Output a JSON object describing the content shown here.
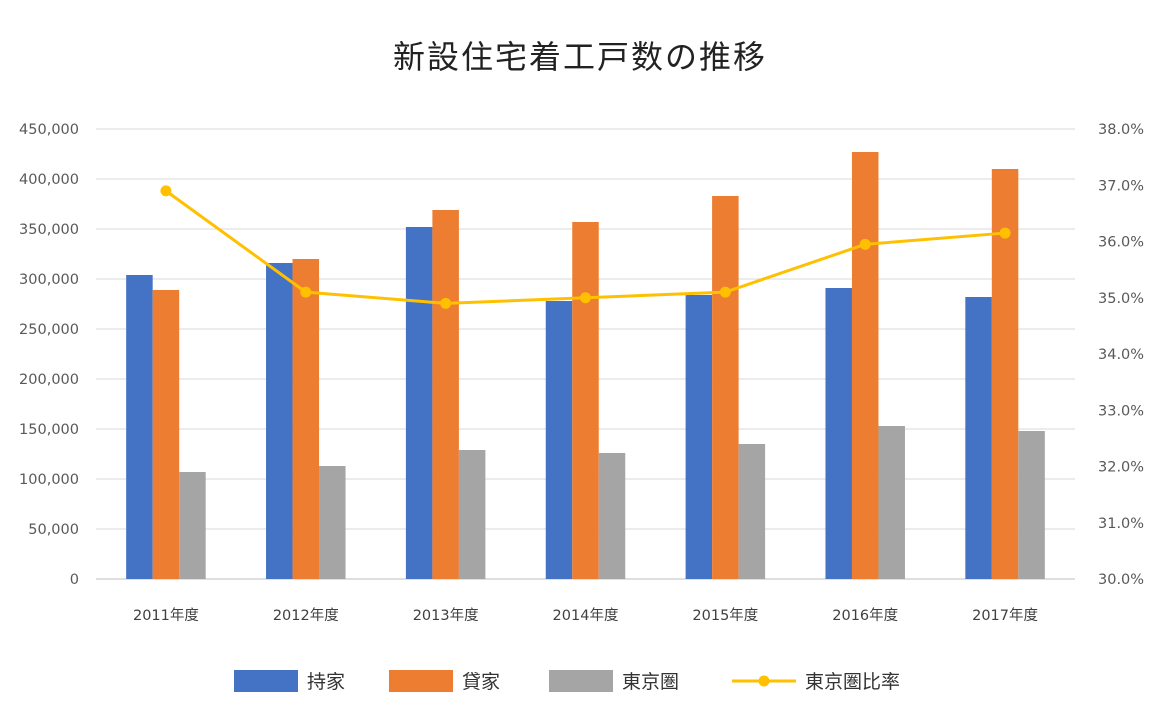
{
  "chart_data": {
    "type": "bar",
    "title": "新設住宅着工戸数の推移",
    "categories": [
      "2011年度",
      "2012年度",
      "2013年度",
      "2014年度",
      "2015年度",
      "2016年度",
      "2017年度"
    ],
    "y_left": {
      "range": [
        0,
        450000
      ],
      "ticks": [
        0,
        50000,
        100000,
        150000,
        200000,
        250000,
        300000,
        350000,
        400000,
        450000
      ],
      "tick_labels": [
        "0",
        "50,000",
        "100,000",
        "150,000",
        "200,000",
        "250,000",
        "300,000",
        "350,000",
        "400,000",
        "450,000"
      ]
    },
    "y_right": {
      "range": [
        30.0,
        38.0
      ],
      "ticks": [
        30,
        31,
        32,
        33,
        34,
        35,
        36,
        37,
        38
      ],
      "tick_labels": [
        "30.0%",
        "31.0%",
        "32.0%",
        "33.0%",
        "34.0%",
        "35.0%",
        "36.0%",
        "37.0%",
        "38.0%"
      ]
    },
    "grid": true,
    "legend_position": "bottom",
    "series": [
      {
        "name": "持家",
        "type": "bar",
        "axis": "left",
        "color": "#4472C4",
        "values": [
          304000,
          316000,
          352000,
          278000,
          284000,
          291000,
          282000
        ]
      },
      {
        "name": "貸家",
        "type": "bar",
        "axis": "left",
        "color": "#ED7D31",
        "values": [
          289000,
          320000,
          369000,
          357000,
          383000,
          427000,
          410000
        ]
      },
      {
        "name": "東京圏",
        "type": "bar",
        "axis": "left",
        "color": "#A5A5A5",
        "values": [
          107000,
          113000,
          129000,
          126000,
          135000,
          153000,
          148000
        ]
      },
      {
        "name": "東京圏比率",
        "type": "line",
        "axis": "right",
        "color": "#FFC000",
        "values": [
          36.9,
          35.1,
          34.9,
          35.0,
          35.1,
          35.95,
          36.15
        ]
      }
    ]
  }
}
